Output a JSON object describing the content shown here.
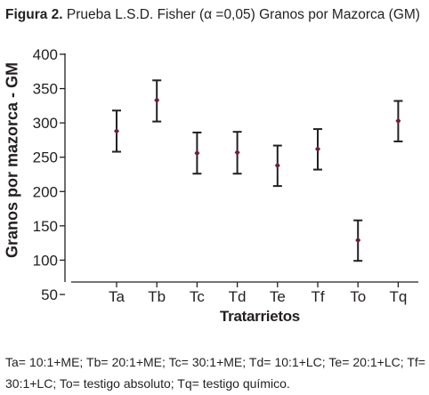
{
  "figure": {
    "title_prefix": "Figura 2.",
    "title_rest": "Prueba L.S.D. Fisher (α =0,05) Granos por Mazorca (GM)"
  },
  "footnote": "Ta= 10:1+ME; Tb= 20:1+ME; Tc= 30:1+ME; Td= 10:1+LC; Te= 20:1+LC; Tf= 30:1+LC; To= testigo absoluto; Tq= testigo químico.",
  "chart_data": {
    "type": "errorbar",
    "title": "",
    "xlabel": "Tratarrietos",
    "ylabel": "Granos por mazorca - GM",
    "categories": [
      "Ta",
      "Tb",
      "Tc",
      "Td",
      "Te",
      "Tf",
      "To",
      "Tq"
    ],
    "values": [
      288,
      333,
      256,
      257,
      238,
      262,
      129,
      303
    ],
    "lower": [
      258,
      302,
      226,
      226,
      208,
      232,
      99,
      273
    ],
    "upper": [
      318,
      362,
      286,
      287,
      267,
      291,
      158,
      332
    ],
    "yticks": [
      50,
      100,
      150,
      200,
      250,
      300,
      350,
      400
    ],
    "ylim": [
      40,
      400
    ],
    "grid": false,
    "colors": {
      "axis": "#231f20",
      "point": "#6b1f3a",
      "errorbar": "#231f20"
    }
  }
}
